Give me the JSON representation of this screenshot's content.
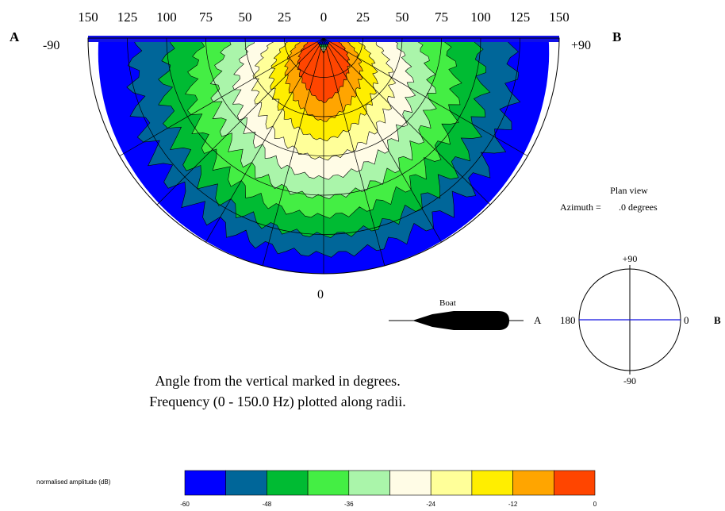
{
  "chart_data": {
    "type": "heatmap",
    "subtype": "polar-half-disc",
    "title": "",
    "radial_axis": {
      "label": "Frequency (0 - 150.0 Hz)",
      "range": [
        0,
        150
      ],
      "ticks_left": [
        "150",
        "125",
        "100",
        "75",
        "50",
        "25"
      ],
      "tick_center": "0",
      "ticks_right": [
        "25",
        "50",
        "75",
        "100",
        "125",
        "150"
      ],
      "bottom_tick": "0"
    },
    "angle_axis": {
      "range": [
        -90,
        90
      ],
      "left_label": "-90",
      "right_label": "+90",
      "spokes_deg": [
        -90,
        -60,
        -45,
        -30,
        -15,
        0,
        15,
        30,
        45,
        60,
        90
      ]
    },
    "colorbar": {
      "label": "normalised amplitude (dB)",
      "ticks": [
        "-60",
        "-48",
        "-36",
        "-24",
        "-12",
        "0"
      ],
      "colors": [
        "#0000ff",
        "#006699",
        "#00bb33",
        "#44ee44",
        "#aaf5aa",
        "#fffce6",
        "#ffff99",
        "#ffee00",
        "#ffa500",
        "#ff4500"
      ]
    },
    "contour_bands": [
      {
        "level_db": -60,
        "color": "#0000ff"
      },
      {
        "level_db": -48,
        "color": "#006699"
      },
      {
        "level_db": -42,
        "color": "#00bb33"
      },
      {
        "level_db": -36,
        "color": "#44ee44"
      },
      {
        "level_db": -30,
        "color": "#aaf5aa"
      },
      {
        "level_db": -24,
        "color": "#fffce6"
      },
      {
        "level_db": -18,
        "color": "#ffff99"
      },
      {
        "level_db": -12,
        "color": "#ffee00"
      },
      {
        "level_db": -6,
        "color": "#ffa500"
      },
      {
        "level_db": 0,
        "color": "#ff4500"
      }
    ]
  },
  "labels": {
    "side_a": "A",
    "side_b": "B",
    "plan_view": "Plan view",
    "azimuth_label": "Azimuth =",
    "azimuth_value": ".0 degrees",
    "boat": "Boat",
    "compass_top": "+90",
    "compass_bottom": "-90",
    "compass_left": "180",
    "compass_right": "0",
    "compass_a": "A",
    "compass_b": "B"
  },
  "caption": {
    "line1": "Angle from the vertical marked in degrees.",
    "line2": "Frequency (0 - 150.0 Hz) plotted along radii."
  }
}
